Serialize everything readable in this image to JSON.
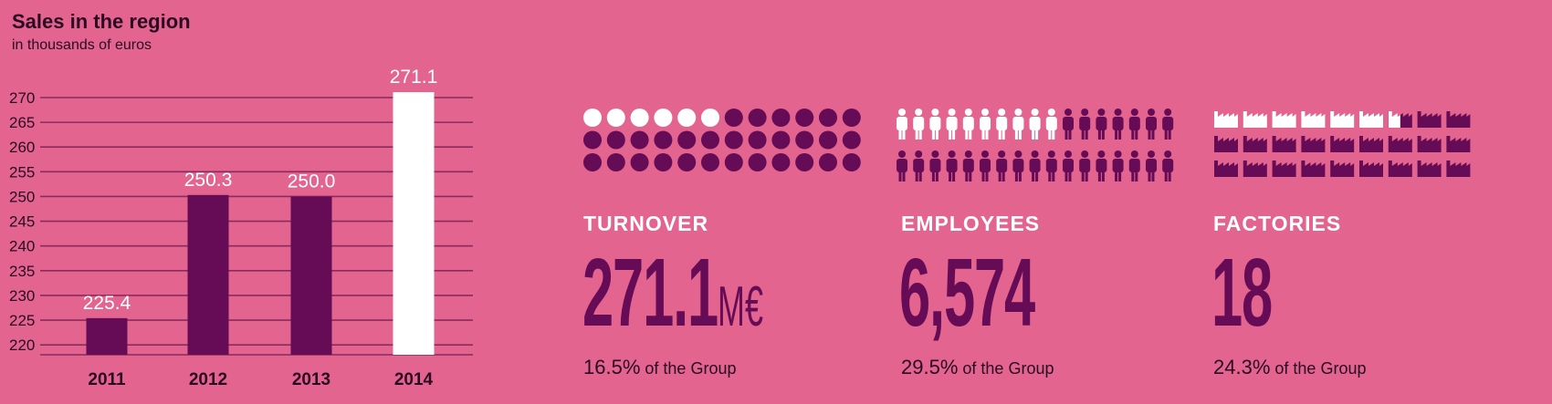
{
  "chart_data": {
    "type": "bar",
    "title": "Sales in the region",
    "subtitle": "in thousands of euros",
    "categories": [
      "2011",
      "2012",
      "2013",
      "2014"
    ],
    "values": [
      225.4,
      250.3,
      250.0,
      271.1
    ],
    "value_labels": [
      "225.4",
      "250.3",
      "250.0",
      "271.1"
    ],
    "highlight_index": 3,
    "ylim": [
      218,
      270
    ],
    "yticks": [
      220,
      225,
      230,
      235,
      240,
      245,
      250,
      255,
      260,
      265,
      270
    ],
    "grid": true,
    "colors": {
      "bar": "#660b56",
      "highlight": "#ffffff",
      "grid": "#8b2a5e"
    }
  },
  "panels": [
    {
      "label": "TURNOVER",
      "value": "271.1",
      "unit": "M€",
      "share_pct": "16.5%",
      "share_text": "of the Group",
      "icon": "circle-icon",
      "icon_filled": 6,
      "icon_total": 36
    },
    {
      "label": "EMPLOYEES",
      "value": "6,574",
      "unit": "",
      "share_pct": "29.5%",
      "share_text": "of the Group",
      "icon": "person-icon",
      "icon_filled": 10,
      "icon_total": 34
    },
    {
      "label": "FACTORIES",
      "value": "18",
      "unit": "",
      "share_pct": "24.3%",
      "share_text": "of the Group",
      "icon": "factory-icon",
      "icon_filled": 6.5,
      "icon_total": 27
    }
  ],
  "colors": {
    "background": "#e3648f",
    "dark": "#660b56",
    "light": "#ffffff",
    "text": "#2a0a22"
  }
}
